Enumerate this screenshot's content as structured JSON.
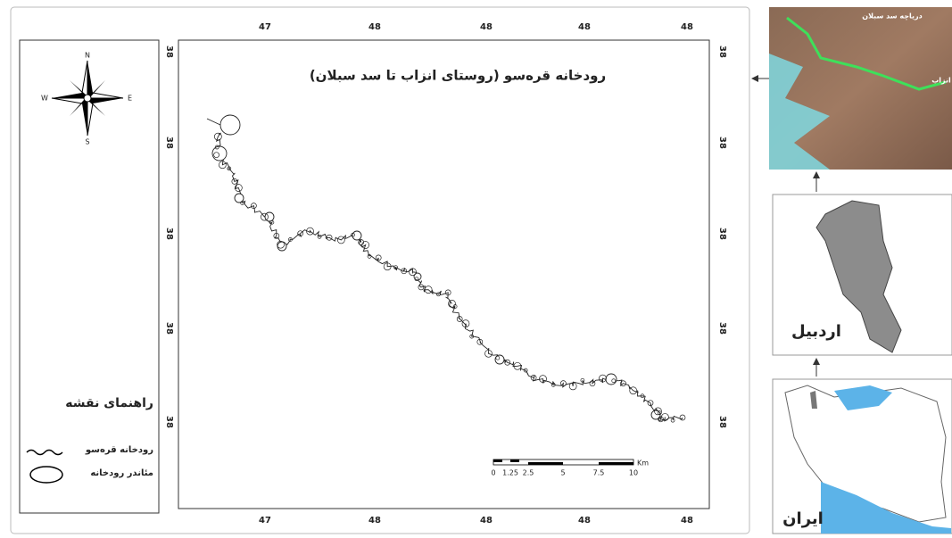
{
  "map": {
    "title": "رودخانه قره‌سو  (روستای انزاب تا سد سبلان)",
    "top_ticks": [
      "47",
      "48",
      "48",
      "48",
      "48"
    ],
    "bottom_ticks": [
      "47",
      "48",
      "48",
      "48",
      "48"
    ],
    "left_ticks": [
      "38",
      "38",
      "38",
      "38",
      "38"
    ],
    "right_ticks": [
      "38",
      "38",
      "38",
      "38",
      "38"
    ]
  },
  "compass": {
    "n": "N",
    "s": "S",
    "e": "E",
    "w": "W"
  },
  "legend": {
    "title": "راهنمای نقشه",
    "items": [
      "رودخانه قره‌سو",
      "مئاندر رودخانه"
    ]
  },
  "scale_bar": {
    "labels": [
      "0",
      "1.25",
      "2.5",
      "5",
      "7.5",
      "10"
    ],
    "unit": "Km"
  },
  "insets": {
    "satellite_labels": [
      "دریاچه سد سبلان",
      "انزاب"
    ],
    "province": "اردبیل",
    "country": "ایران"
  }
}
